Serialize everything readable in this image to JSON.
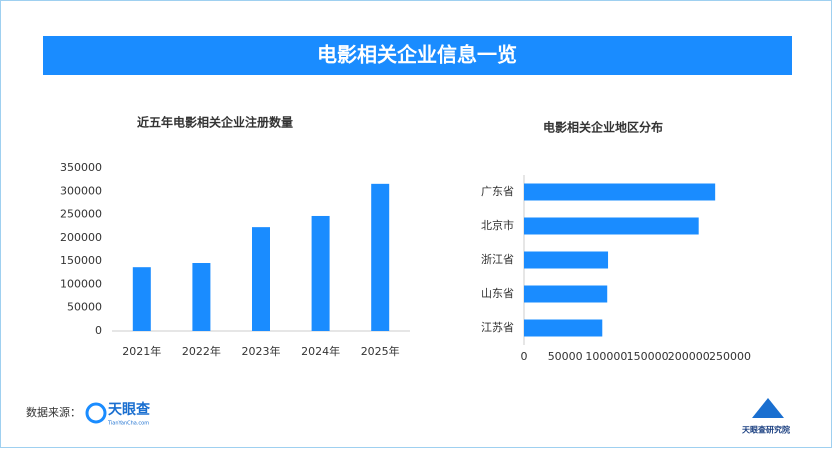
{
  "header": {
    "title": "电影相关企业信息一览"
  },
  "chart_data": [
    {
      "type": "bar",
      "title": "近五年电影相关企业注册数量",
      "categories": [
        "2021年",
        "2022年",
        "2023年",
        "2024年",
        "2025年"
      ],
      "values": [
        137000,
        146000,
        223000,
        247000,
        316000
      ],
      "color": "#1a8cff",
      "ylim": [
        0,
        350000
      ],
      "yticks": [
        0,
        50000,
        100000,
        150000,
        200000,
        250000,
        300000,
        350000
      ]
    },
    {
      "type": "bar",
      "orientation": "horizontal",
      "title": "电影相关企业地区分布",
      "categories": [
        "广东省",
        "北京市",
        "浙江省",
        "山东省",
        "江苏省"
      ],
      "values": [
        232000,
        212000,
        102000,
        101000,
        95000
      ],
      "color": "#1a8cff",
      "xlim": [
        0,
        250000
      ],
      "xticks": [
        0,
        50000,
        100000,
        150000,
        200000,
        250000
      ]
    }
  ],
  "footer": {
    "source_label": "数据来源：",
    "logo_text": "天眼查",
    "logo_sub": "TianYanCha.com",
    "brand": "天眼查研究院"
  }
}
